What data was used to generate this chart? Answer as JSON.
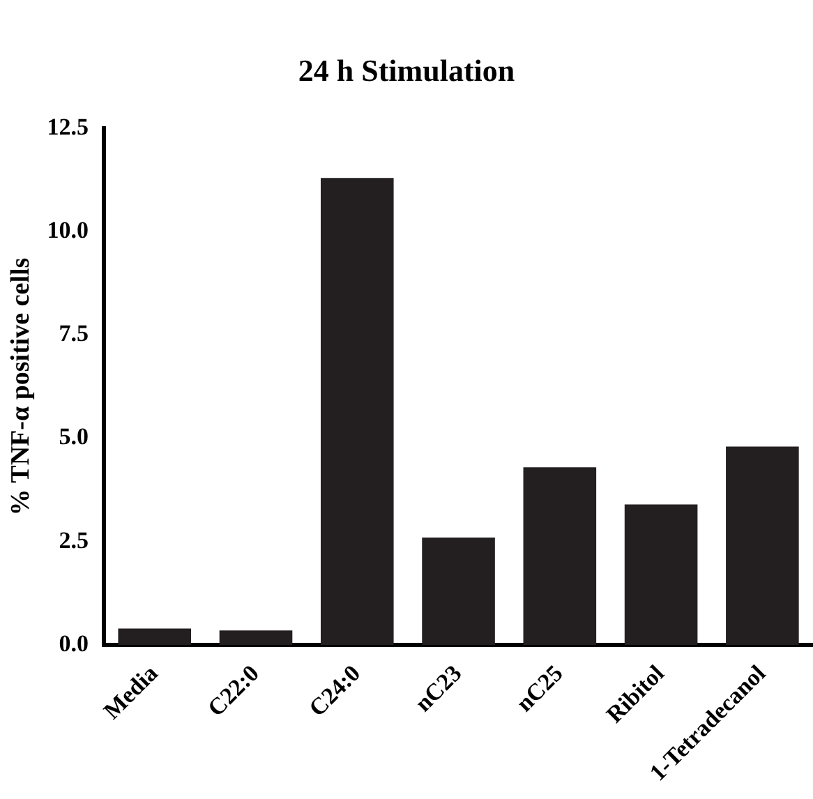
{
  "chart_data": {
    "type": "bar",
    "title": "24 h Stimulation",
    "ylabel": "% TNF-α positive cells",
    "categories": [
      "Media",
      "C22:0",
      "C24:0",
      "nC23",
      "nC25",
      "Ribitol",
      "1-Tetradecanol"
    ],
    "values": [
      0.4,
      0.35,
      11.3,
      2.6,
      4.3,
      3.4,
      4.8
    ],
    "color": "#231f20",
    "ylim": [
      0,
      12.5
    ],
    "yticks": [
      {
        "value": 0,
        "label": "0.0"
      },
      {
        "value": 2.5,
        "label": "2.5"
      },
      {
        "value": 5,
        "label": "5.0"
      },
      {
        "value": 7.5,
        "label": "7.5"
      },
      {
        "value": 10,
        "label": "10.0"
      },
      {
        "value": 12.5,
        "label": "12.5"
      }
    ],
    "grid": false,
    "legend": false
  }
}
